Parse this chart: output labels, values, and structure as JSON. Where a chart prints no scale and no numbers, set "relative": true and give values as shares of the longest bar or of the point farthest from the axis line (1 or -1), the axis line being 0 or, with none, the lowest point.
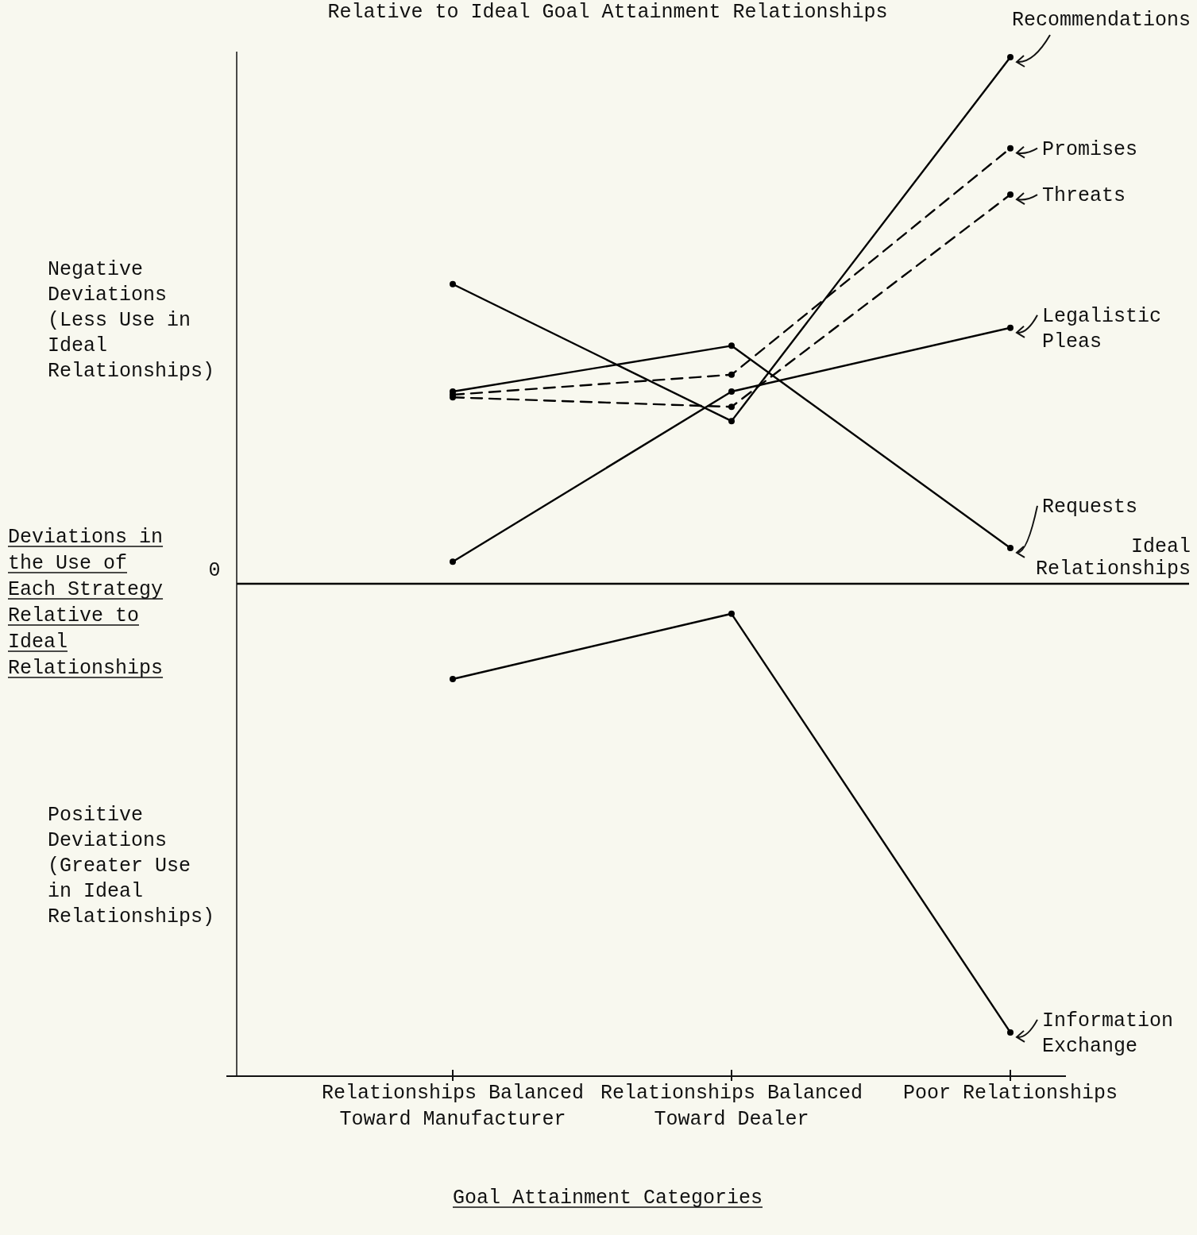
{
  "chart_data": {
    "type": "line",
    "relative": true,
    "title": "Relative to Ideal Goal Attainment Relationships",
    "xlabel": "Goal Attainment Categories",
    "ylabel": "Deviations in the Use of Each Strategy Relative to Ideal Relationships",
    "categories": [
      "Relationships Balanced Toward Manufacturer",
      "Relationships Balanced Toward Dealer",
      "Poor Relationships"
    ],
    "series": [
      {
        "name": "Recommendations",
        "color": "#000000",
        "values": [
          0.569,
          0.309,
          1
        ]
      },
      {
        "name": "Promises",
        "color": "#000000",
        "line_style": "dashed",
        "values": [
          0.359,
          0.397,
          0.827
        ]
      },
      {
        "name": "Threats",
        "color": "#000000",
        "line_style": "dashed",
        "values": [
          0.354,
          0.336,
          0.739
        ]
      },
      {
        "name": "Legalistic Pleas",
        "color": "#000000",
        "values": [
          0.042,
          0.365,
          0.486
        ]
      },
      {
        "name": "Requests",
        "color": "#000000",
        "values": [
          0.365,
          0.452,
          0.068
        ]
      },
      {
        "name": "Information Exchange",
        "color": "#000000",
        "values": [
          -0.181,
          -0.057,
          -0.852
        ]
      }
    ],
    "ref_lines": [
      {
        "axis": "y",
        "value": 0,
        "label": "Ideal Relationships",
        "color": "#000000"
      }
    ],
    "annotations": [
      "0",
      "Negative Deviations (Less Use in Ideal Relationships)",
      "Positive Deviations (Greater Use in Ideal Relationships)"
    ],
    "marker": "circle",
    "line_style": "solid"
  }
}
